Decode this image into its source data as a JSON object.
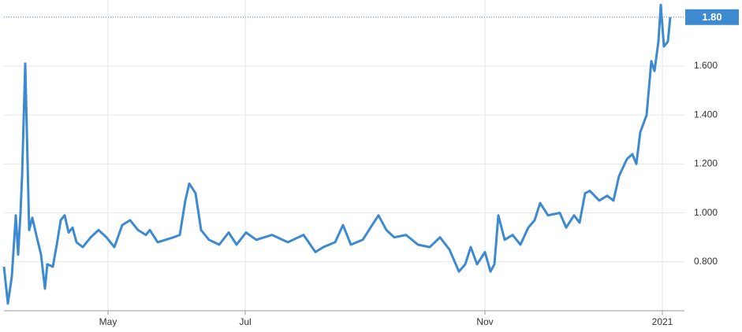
{
  "chart_data": {
    "type": "line",
    "x": [
      0,
      5,
      10,
      15,
      18,
      21,
      23,
      27,
      32,
      36,
      41,
      47,
      52,
      55,
      62,
      67,
      72,
      77,
      82,
      87,
      92,
      100,
      110,
      120,
      130,
      140,
      150,
      160,
      170,
      180,
      185,
      195,
      205,
      215,
      223,
      230,
      235,
      243,
      250,
      260,
      273,
      285,
      295,
      307,
      320,
      340,
      360,
      380,
      395,
      405,
      420,
      430,
      440,
      455,
      467,
      475,
      485,
      495,
      510,
      525,
      540,
      553,
      565,
      577,
      585,
      592,
      600,
      610,
      617,
      622,
      627,
      635,
      645,
      655,
      665,
      673,
      680,
      690,
      705,
      713,
      723,
      730,
      737,
      743,
      755,
      765,
      773,
      780,
      790,
      797,
      802,
      807,
      815,
      821,
      825,
      830,
      833,
      837,
      842,
      845
    ],
    "series": [
      {
        "name": "value",
        "color": "#3d8ad0",
        "values": [
          0.78,
          0.63,
          0.74,
          0.99,
          0.83,
          1.0,
          1.15,
          1.61,
          0.93,
          0.98,
          0.91,
          0.83,
          0.69,
          0.79,
          0.78,
          0.87,
          0.97,
          0.99,
          0.92,
          0.94,
          0.88,
          0.86,
          0.9,
          0.93,
          0.9,
          0.86,
          0.95,
          0.97,
          0.93,
          0.91,
          0.93,
          0.88,
          0.89,
          0.9,
          0.91,
          1.05,
          1.12,
          1.08,
          0.93,
          0.89,
          0.87,
          0.92,
          0.87,
          0.92,
          0.89,
          0.91,
          0.88,
          0.91,
          0.84,
          0.86,
          0.88,
          0.95,
          0.87,
          0.89,
          0.95,
          0.99,
          0.93,
          0.9,
          0.91,
          0.87,
          0.86,
          0.9,
          0.85,
          0.76,
          0.79,
          0.86,
          0.79,
          0.84,
          0.76,
          0.79,
          0.99,
          0.89,
          0.91,
          0.87,
          0.94,
          0.97,
          1.04,
          0.99,
          1.0,
          0.94,
          0.99,
          0.96,
          1.08,
          1.09,
          1.05,
          1.07,
          1.05,
          1.15,
          1.22,
          1.24,
          1.2,
          1.33,
          1.4,
          1.62,
          1.58,
          1.7,
          1.85,
          1.68,
          1.7,
          1.8
        ]
      }
    ],
    "xlim": [
      0,
      863
    ],
    "xticks": [
      {
        "value": 132,
        "label": "May"
      },
      {
        "value": 306,
        "label": "Jul"
      },
      {
        "value": 610,
        "label": "Nov"
      },
      {
        "value": 835,
        "label": "2021"
      }
    ],
    "ylim": [
      0.6,
      1.87
    ],
    "yticks": [
      {
        "value": 0.8,
        "label": "0.800"
      },
      {
        "value": 1.0,
        "label": "1.000"
      },
      {
        "value": 1.2,
        "label": "1.200"
      },
      {
        "value": 1.4,
        "label": "1.400"
      },
      {
        "value": 1.6,
        "label": "1.600"
      }
    ],
    "last_value": {
      "value": 1.8,
      "label": "1.80"
    },
    "grid": true
  }
}
